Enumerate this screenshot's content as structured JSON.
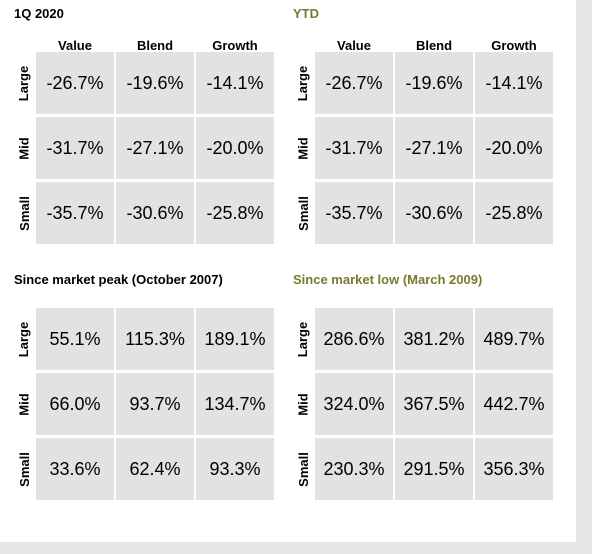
{
  "chart_data": [
    {
      "type": "table",
      "title": "1Q 2020",
      "title_color": "#000000",
      "columns": [
        "Value",
        "Blend",
        "Growth"
      ],
      "rows": [
        "Large",
        "Mid",
        "Small"
      ],
      "cells": [
        [
          "-26.7%",
          "-19.6%",
          "-14.1%"
        ],
        [
          "-31.7%",
          "-27.1%",
          "-20.0%"
        ],
        [
          "-35.7%",
          "-30.6%",
          "-25.8%"
        ]
      ]
    },
    {
      "type": "table",
      "title": "YTD",
      "title_color": "#7a7a2e",
      "columns": [
        "Value",
        "Blend",
        "Growth"
      ],
      "rows": [
        "Large",
        "Mid",
        "Small"
      ],
      "cells": [
        [
          "-26.7%",
          "-19.6%",
          "-14.1%"
        ],
        [
          "-31.7%",
          "-27.1%",
          "-20.0%"
        ],
        [
          "-35.7%",
          "-30.6%",
          "-25.8%"
        ]
      ]
    },
    {
      "type": "table",
      "title": "Since market peak (October 2007)",
      "title_color": "#000000",
      "columns": [
        "Value",
        "Blend",
        "Growth"
      ],
      "rows": [
        "Large",
        "Mid",
        "Small"
      ],
      "cells": [
        [
          "55.1%",
          "115.3%",
          "189.1%"
        ],
        [
          "66.0%",
          "93.7%",
          "134.7%"
        ],
        [
          "33.6%",
          "62.4%",
          "93.3%"
        ]
      ]
    },
    {
      "type": "table",
      "title": "Since market low (March 2009)",
      "title_color": "#7a7a2e",
      "columns": [
        "Value",
        "Blend",
        "Growth"
      ],
      "rows": [
        "Large",
        "Mid",
        "Small"
      ],
      "cells": [
        [
          "286.6%",
          "381.2%",
          "489.7%"
        ],
        [
          "324.0%",
          "367.5%",
          "442.7%"
        ],
        [
          "230.3%",
          "291.5%",
          "356.3%"
        ]
      ]
    }
  ]
}
